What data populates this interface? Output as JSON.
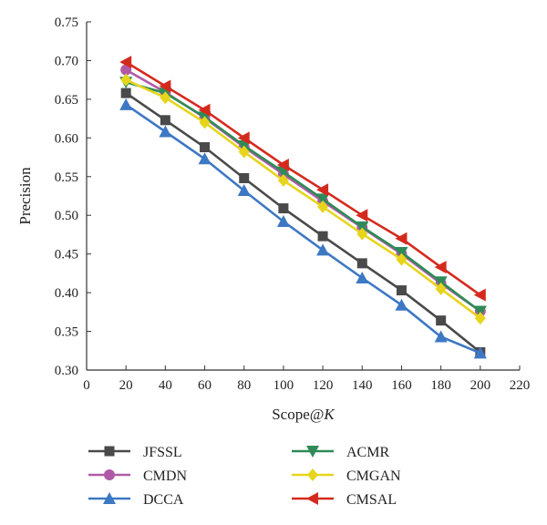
{
  "chart_data": {
    "type": "line",
    "xlabel": "Scope@",
    "xlabel_italic": "K",
    "ylabel": "Precision",
    "xlim": [
      0,
      220
    ],
    "ylim": [
      0.3,
      0.75
    ],
    "x_ticks": [
      "0",
      "20",
      "40",
      "60",
      "80",
      "100",
      "120",
      "140",
      "160",
      "180",
      "200",
      "220"
    ],
    "y_ticks": [
      "0.30",
      "0.35",
      "0.40",
      "0.45",
      "0.50",
      "0.55",
      "0.60",
      "0.65",
      "0.70",
      "0.75"
    ],
    "grid": false,
    "legend_position": "bottom",
    "x": [
      20,
      40,
      60,
      80,
      100,
      120,
      140,
      160,
      180,
      200
    ],
    "series": [
      {
        "name": "JFSSL",
        "color": "#4a4a4a",
        "marker": "square",
        "values": [
          0.658,
          0.623,
          0.588,
          0.548,
          0.509,
          0.473,
          0.438,
          0.403,
          0.364,
          0.323
        ]
      },
      {
        "name": "CMDN",
        "color": "#b05aa6",
        "marker": "circle",
        "values": [
          0.688,
          0.659,
          0.626,
          0.588,
          0.553,
          0.518,
          0.484,
          0.45,
          0.412,
          0.376
        ]
      },
      {
        "name": "DCCA",
        "color": "#3d78c4",
        "marker": "triangle-up",
        "values": [
          0.643,
          0.608,
          0.573,
          0.532,
          0.492,
          0.455,
          0.419,
          0.384,
          0.343,
          0.322
        ]
      },
      {
        "name": "ACMR",
        "color": "#2e8b57",
        "marker": "triangle-down",
        "values": [
          0.672,
          0.658,
          0.627,
          0.59,
          0.556,
          0.521,
          0.485,
          0.452,
          0.414,
          0.376
        ]
      },
      {
        "name": "CMGAN",
        "color": "#e6d51c",
        "marker": "diamond",
        "values": [
          0.675,
          0.652,
          0.62,
          0.582,
          0.545,
          0.511,
          0.476,
          0.443,
          0.405,
          0.367
        ]
      },
      {
        "name": "CMSAL",
        "color": "#d42a1e",
        "marker": "triangle-left",
        "values": [
          0.698,
          0.667,
          0.636,
          0.6,
          0.565,
          0.533,
          0.5,
          0.47,
          0.433,
          0.397
        ]
      }
    ],
    "legend_order": [
      "JFSSL",
      "ACMR",
      "CMDN",
      "CMGAN",
      "DCCA",
      "CMSAL"
    ]
  }
}
